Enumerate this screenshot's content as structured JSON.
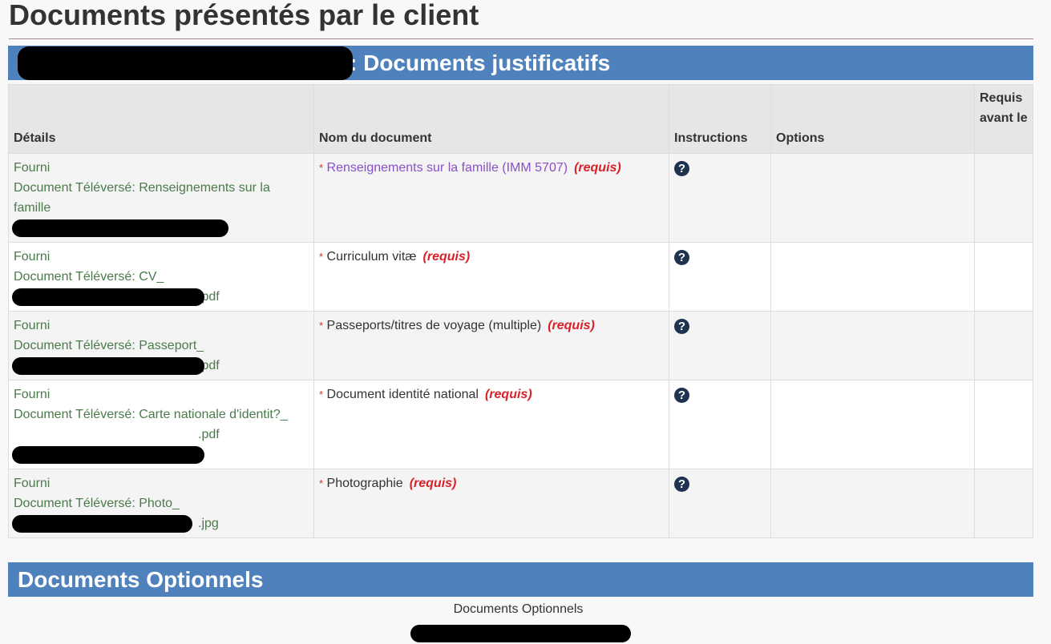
{
  "page_title": "Documents présentés par le client",
  "section1_title": ": Documents justificatifs",
  "headers": [
    "Détails",
    "Nom du document",
    "Instructions",
    "Options",
    "Requis avant le"
  ],
  "rows": [
    {
      "status": "Fourni",
      "uploaded": "Document Téléversé:  Renseignements sur la famille",
      "suffix": "",
      "name": "Renseignements sur la famille (IMM 5707)",
      "link": true,
      "required": "(requis)",
      "height": 111
    },
    {
      "status": "Fourni",
      "uploaded": "Document Téléversé:  CV_",
      "suffix": ".pdf",
      "name": "Curriculum vitæ",
      "link": false,
      "required": "(requis)",
      "height": 86
    },
    {
      "status": "Fourni",
      "uploaded": "Document Téléversé:  Passeport_",
      "suffix": ".pdf",
      "name": "Passeports/titres de voyage (multiple)",
      "link": false,
      "required": "(requis)",
      "height": 85
    },
    {
      "status": "Fourni",
      "uploaded": "Document Téléversé:  Carte nationale d'identit?_",
      "suffix": ".pdf",
      "name": "Document identité national",
      "link": false,
      "required": "(requis)",
      "height": 111
    },
    {
      "status": "Fourni",
      "uploaded": "Document Téléversé:  Photo_",
      "suffix": ".jpg",
      "name": "Photographie",
      "link": false,
      "required": "(requis)",
      "height": 85
    }
  ],
  "section2_title": "Documents Optionnels",
  "optional_caption": "Documents Optionnels",
  "icons": {
    "instructions": "question-circle-icon"
  },
  "colors": {
    "band": "#4f81bd",
    "required": "#d9212a",
    "status": "#4b7a4b",
    "link": "#8a4fc9"
  }
}
